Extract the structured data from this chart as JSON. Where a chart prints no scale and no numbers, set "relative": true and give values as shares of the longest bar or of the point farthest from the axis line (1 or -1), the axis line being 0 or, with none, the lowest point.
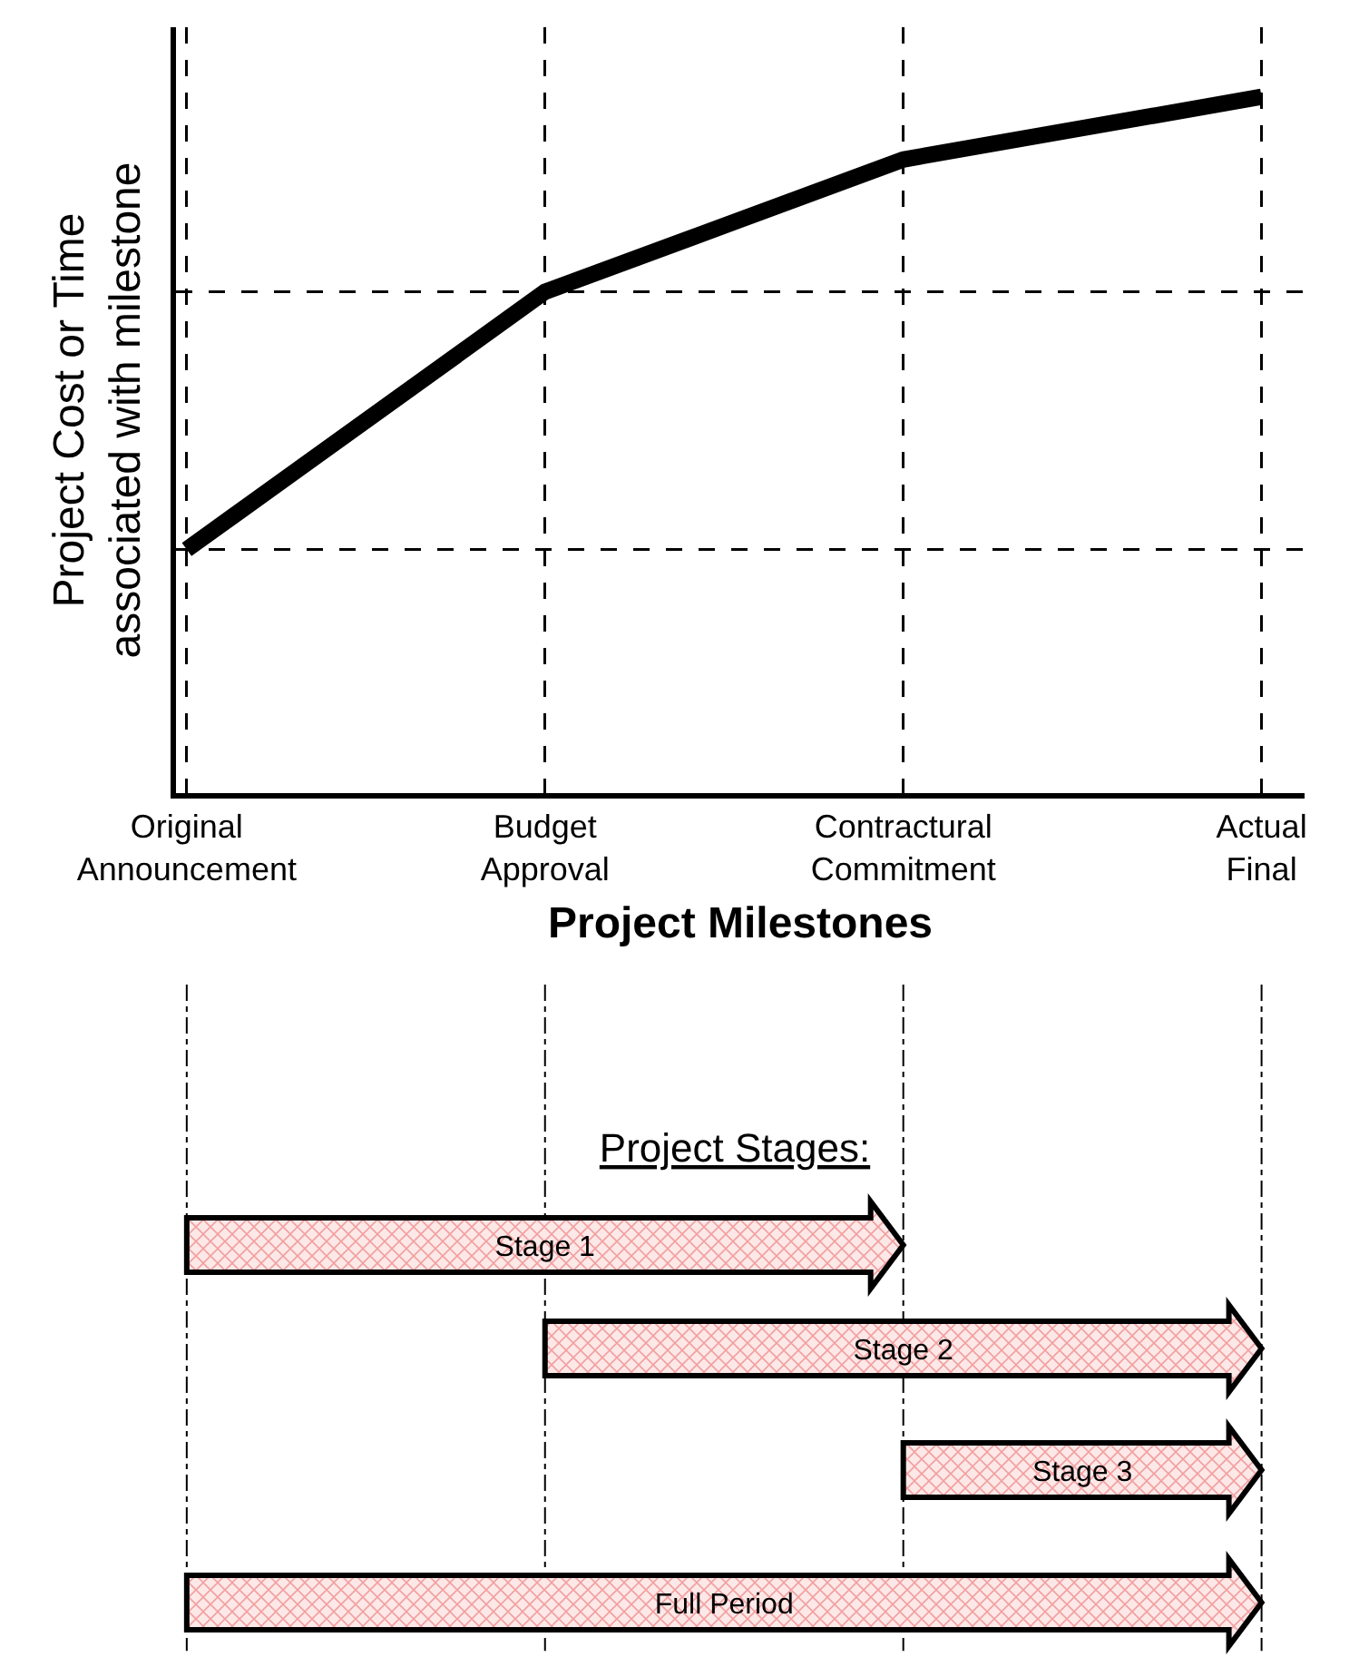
{
  "chart_data": {
    "type": "line",
    "relative": true,
    "ylabel": "Project Cost or Time\nassociated with milestone",
    "xlabel": "Project Milestones",
    "categories": [
      "Original\nAnnouncement",
      "Budget\nApproval",
      "Contractural\nCommitment",
      "Actual\nFinal"
    ],
    "series": [
      {
        "color": "#000000",
        "values": [
          0.35,
          0.72,
          0.91,
          1
        ]
      }
    ],
    "grid": "x",
    "line_style": "solid",
    "marker": "none",
    "ref_lines": [
      {
        "axis": "y",
        "value": 0.35,
        "line_style": "dashed",
        "color": "#000000"
      },
      {
        "axis": "y",
        "value": 0.72,
        "line_style": "dashed",
        "color": "#000000"
      }
    ],
    "annotations": [
      "Project Stages:",
      "Stage 1",
      "Stage 2",
      "Stage 3",
      "Full Period"
    ]
  }
}
